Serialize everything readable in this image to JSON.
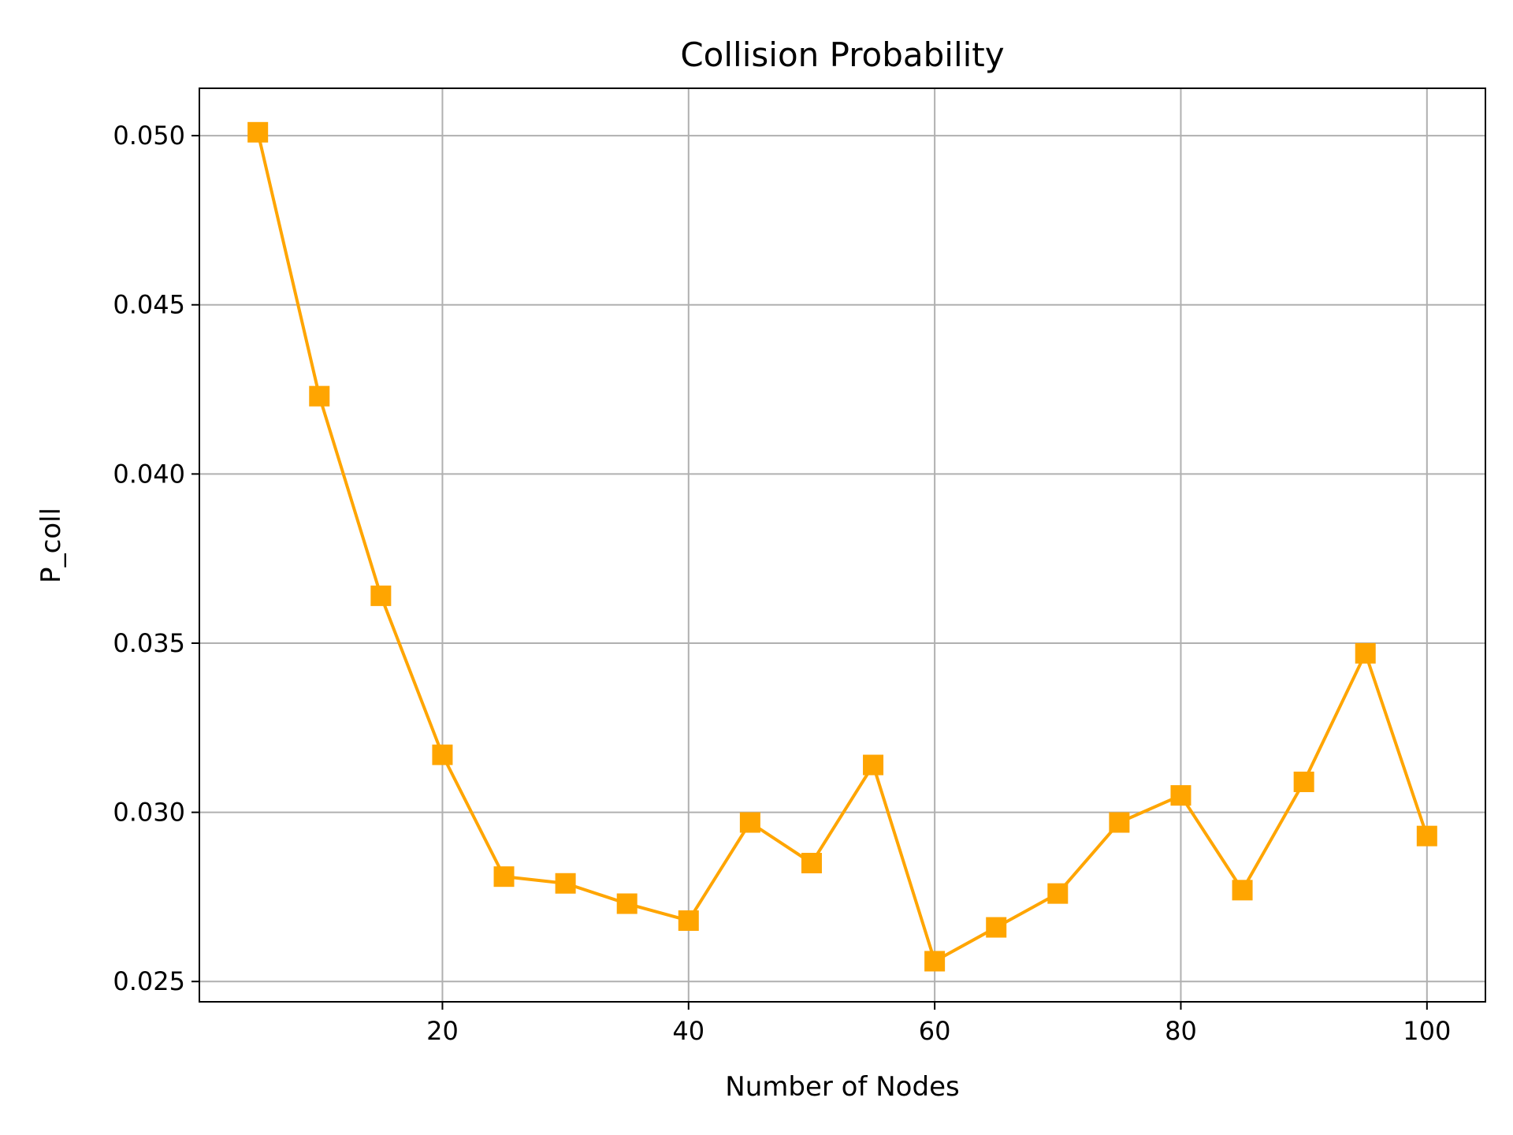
{
  "chart_data": {
    "type": "line",
    "title": "Collision Probability",
    "xlabel": "Number of Nodes",
    "ylabel": "P_coll",
    "xlim": [
      0.25,
      104.75
    ],
    "ylim": [
      0.0244,
      0.0514
    ],
    "xticks": [
      20,
      40,
      60,
      80,
      100
    ],
    "yticks": [
      0.025,
      0.03,
      0.035,
      0.04,
      0.045,
      0.05
    ],
    "ytick_labels": [
      "0.025",
      "0.030",
      "0.035",
      "0.040",
      "0.045",
      "0.050"
    ],
    "grid": true,
    "marker": "square",
    "color": "#FFA500",
    "series": [
      {
        "x": [
          5,
          10,
          15,
          20,
          25,
          30,
          35,
          40,
          45,
          50,
          55,
          60,
          65,
          70,
          75,
          80,
          85,
          90,
          95,
          100
        ],
        "values": [
          0.0501,
          0.0423,
          0.0364,
          0.0317,
          0.0281,
          0.0279,
          0.0273,
          0.0268,
          0.0297,
          0.0285,
          0.0314,
          0.0256,
          0.0266,
          0.0276,
          0.0297,
          0.0305,
          0.0277,
          0.0309,
          0.0347,
          0.0293
        ]
      }
    ]
  }
}
